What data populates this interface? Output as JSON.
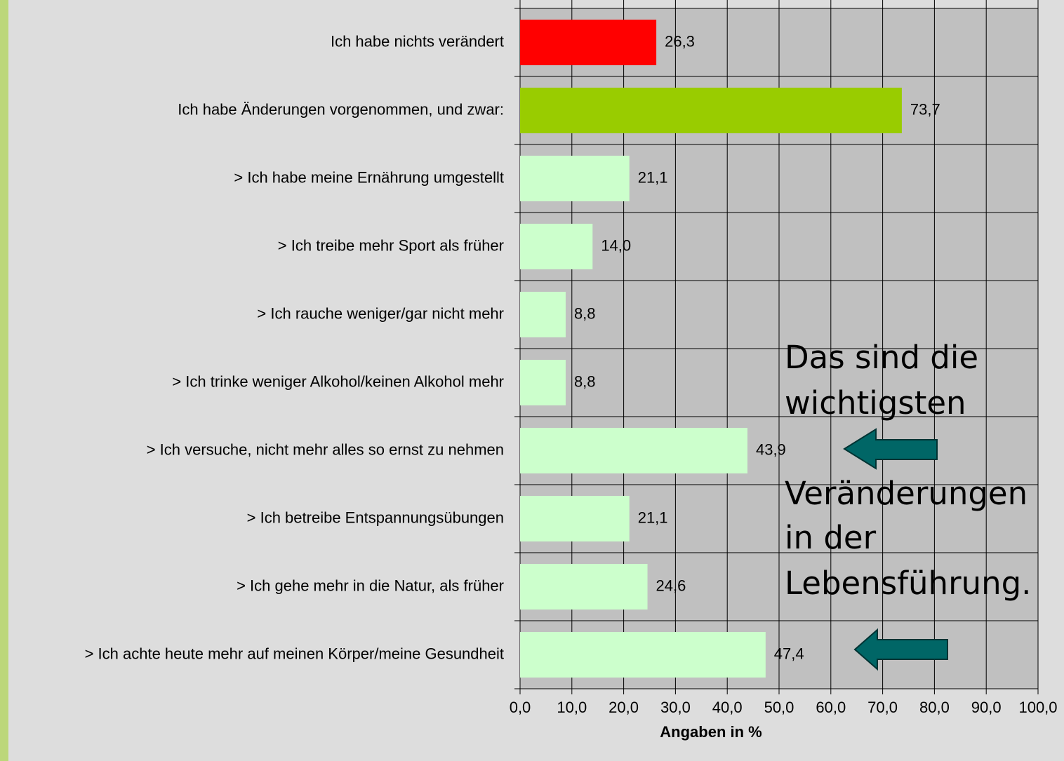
{
  "chart_data": {
    "type": "barh",
    "categories": [
      "Ich habe nichts verändert",
      "Ich habe Änderungen vorgenommen, und zwar:",
      "> Ich habe meine Ernährung umgestellt",
      "> Ich treibe mehr Sport als früher",
      "> Ich rauche weniger/gar nicht mehr",
      "> Ich trinke weniger Alkohol/keinen Alkohol mehr",
      "> Ich versuche, nicht mehr alles so ernst zu nehmen",
      "> Ich betreibe Entspannungsübungen",
      "> Ich gehe mehr in die Natur, als früher",
      "> Ich achte heute mehr auf meinen Körper/meine Gesundheit"
    ],
    "values": [
      26.3,
      73.7,
      21.1,
      14.0,
      8.8,
      8.8,
      43.9,
      21.1,
      24.6,
      47.4
    ],
    "value_labels": [
      "26,3",
      "73,7",
      "21,1",
      "14,0",
      "8,8",
      "8,8",
      "43,9",
      "21,1",
      "24,6",
      "47,4"
    ],
    "colors": [
      "#ff0000",
      "#99cc00",
      "#ccffcc",
      "#ccffcc",
      "#ccffcc",
      "#ccffcc",
      "#ccffcc",
      "#ccffcc",
      "#ccffcc",
      "#ccffcc"
    ],
    "xlim": [
      0,
      100
    ],
    "xticks": [
      {
        "value": 0,
        "label": "0,0"
      },
      {
        "value": 10,
        "label": "10,0"
      },
      {
        "value": 20,
        "label": "20,0"
      },
      {
        "value": 30,
        "label": "30,0"
      },
      {
        "value": 40,
        "label": "40,0"
      },
      {
        "value": 50,
        "label": "50,0"
      },
      {
        "value": 60,
        "label": "60,0"
      },
      {
        "value": 70,
        "label": "70,0"
      },
      {
        "value": 80,
        "label": "80,0"
      },
      {
        "value": 90,
        "label": "90,0"
      },
      {
        "value": 100,
        "label": "100,0"
      }
    ],
    "xlabel": "Angaben in %",
    "grid": true,
    "annotation": [
      "Das sind die",
      "wichtigsten",
      "Veränderungen",
      "in der",
      "Lebensführung."
    ]
  }
}
